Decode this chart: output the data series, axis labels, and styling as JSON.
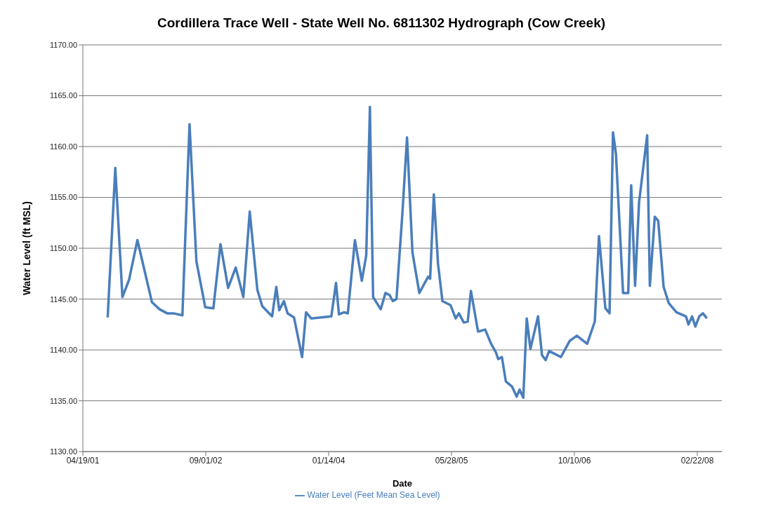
{
  "chart_data": {
    "type": "line",
    "title": "Cordillera Trace Well - State Well No. 6811302 Hydrograph (Cow Creek)",
    "xlabel": "Date",
    "ylabel": "Water Level (ft MSL)",
    "x": [
      "2001-07-29",
      "2001-08-29",
      "2001-09-27",
      "2001-10-24",
      "2001-11-27",
      "2002-01-25",
      "2002-02-25",
      "2002-03-28",
      "2002-04-23",
      "2002-05-29",
      "2002-06-27",
      "2002-07-25",
      "2002-08-30",
      "2002-10-02",
      "2002-10-31",
      "2002-12-01",
      "2003-01-01",
      "2003-02-01",
      "2003-02-27",
      "2003-03-30",
      "2003-04-19",
      "2003-05-29",
      "2003-06-15",
      "2003-06-27",
      "2003-07-16",
      "2003-07-31",
      "2003-08-26",
      "2003-09-28",
      "2003-10-14",
      "2003-11-04",
      "2004-01-25",
      "2004-02-13",
      "2004-02-25",
      "2004-03-17",
      "2004-04-01",
      "2004-04-30",
      "2004-05-28",
      "2004-06-15",
      "2004-06-30",
      "2004-07-04",
      "2004-07-13",
      "2004-08-13",
      "2004-09-01",
      "2004-09-18",
      "2004-10-01",
      "2004-10-16",
      "2004-11-09",
      "2004-11-28",
      "2004-12-20",
      "2005-01-17",
      "2005-02-22",
      "2005-03-02",
      "2005-03-17",
      "2005-04-03",
      "2005-04-21",
      "2005-05-24",
      "2005-06-14",
      "2005-06-27",
      "2005-07-17",
      "2005-08-02",
      "2005-08-15",
      "2005-09-13",
      "2005-10-12",
      "2005-11-05",
      "2005-11-24",
      "2005-12-04",
      "2005-12-19",
      "2006-01-04",
      "2006-01-29",
      "2006-02-17",
      "2006-03-01",
      "2006-03-16",
      "2006-03-30",
      "2006-04-14",
      "2006-05-15",
      "2006-05-31",
      "2006-06-15",
      "2006-06-29",
      "2006-08-16",
      "2006-09-21",
      "2006-10-20",
      "2006-12-01",
      "2007-01-01",
      "2007-01-18",
      "2007-02-13",
      "2007-03-02",
      "2007-03-16",
      "2007-03-28",
      "2007-04-26",
      "2007-05-17",
      "2007-05-29",
      "2007-06-14",
      "2007-06-30",
      "2007-08-02",
      "2007-08-13",
      "2007-09-02",
      "2007-09-16",
      "2007-10-08",
      "2007-10-29",
      "2007-11-29",
      "2008-01-07",
      "2008-01-17",
      "2008-02-01",
      "2008-02-14",
      "2008-03-01",
      "2008-03-16",
      "2008-04-01"
    ],
    "series": [
      {
        "name": "Water Level (Feet Mean Sea Level)",
        "color": "#4a7ebb",
        "values": [
          1143.2,
          1157.9,
          1145.2,
          1146.9,
          1150.8,
          1144.7,
          1144.0,
          1143.6,
          1143.6,
          1143.4,
          1162.2,
          1148.7,
          1144.2,
          1144.1,
          1150.4,
          1146.1,
          1148.1,
          1145.2,
          1153.6,
          1145.9,
          1144.3,
          1143.3,
          1146.2,
          1143.9,
          1144.8,
          1143.6,
          1143.2,
          1139.3,
          1143.7,
          1143.1,
          1143.3,
          1146.6,
          1143.5,
          1143.7,
          1143.6,
          1150.8,
          1146.8,
          1149.3,
          1163.9,
          1157.7,
          1145.2,
          1144.0,
          1145.6,
          1145.4,
          1144.8,
          1145.0,
          1153.4,
          1160.9,
          1149.6,
          1145.6,
          1147.2,
          1147.0,
          1155.3,
          1148.5,
          1144.8,
          1144.4,
          1143.1,
          1143.6,
          1142.7,
          1142.8,
          1145.8,
          1141.8,
          1142.0,
          1140.6,
          1139.8,
          1139.1,
          1139.3,
          1136.9,
          1136.4,
          1135.4,
          1136.1,
          1135.3,
          1143.1,
          1140.1,
          1143.3,
          1139.5,
          1139.0,
          1139.9,
          1139.3,
          1140.9,
          1141.4,
          1140.6,
          1142.8,
          1151.2,
          1144.1,
          1143.6,
          1161.4,
          1159.3,
          1145.6,
          1145.6,
          1156.2,
          1146.3,
          1154.5,
          1161.1,
          1146.3,
          1153.1,
          1152.7,
          1146.2,
          1144.6,
          1143.7,
          1143.3,
          1142.5,
          1143.3,
          1142.3,
          1143.3,
          1143.6,
          1143.1
        ]
      }
    ],
    "xlim": [
      "2001-04-19",
      "2008-06-01"
    ],
    "xticks": [
      {
        "value": "2001-04-19",
        "label": "04/19/01"
      },
      {
        "value": "2002-09-01",
        "label": "09/01/02"
      },
      {
        "value": "2004-01-14",
        "label": "01/14/04"
      },
      {
        "value": "2005-05-28",
        "label": "05/28/05"
      },
      {
        "value": "2006-10-10",
        "label": "10/10/06"
      },
      {
        "value": "2008-02-22",
        "label": "02/22/08"
      }
    ],
    "ylim": [
      1130,
      1170
    ],
    "yticks": [
      {
        "value": 1130,
        "label": "1130.00"
      },
      {
        "value": 1135,
        "label": "1135.00"
      },
      {
        "value": 1140,
        "label": "1140.00"
      },
      {
        "value": 1145,
        "label": "1145.00"
      },
      {
        "value": 1150,
        "label": "1150.00"
      },
      {
        "value": 1155,
        "label": "1155.00"
      },
      {
        "value": 1160,
        "label": "1160.00"
      },
      {
        "value": 1165,
        "label": "1165.00"
      },
      {
        "value": 1170,
        "label": "1170.00"
      }
    ],
    "grid": "y",
    "legend": "bottom",
    "marker": "none",
    "line_style": "solid"
  }
}
